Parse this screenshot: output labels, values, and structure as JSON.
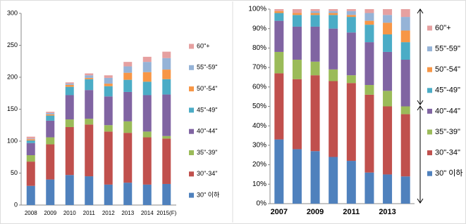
{
  "chart_data": [
    {
      "type": "bar",
      "stacked": true,
      "grid": false,
      "categories": [
        "2008",
        "2009",
        "2010",
        "2011",
        "2012",
        "2013",
        "2014",
        "2015(F)"
      ],
      "ylim": [
        0,
        300
      ],
      "yticks": [
        0,
        50,
        100,
        150,
        200,
        250,
        300
      ],
      "series": [
        {
          "name": "30\" 이하",
          "color": "#4f81bd",
          "values": [
            30,
            40,
            47,
            45,
            32,
            35,
            32,
            33
          ]
        },
        {
          "name": "30\"-34\"",
          "color": "#c0504d",
          "values": [
            38,
            55,
            75,
            81,
            83,
            78,
            74,
            71
          ]
        },
        {
          "name": "35\"-39\"",
          "color": "#9bbb59",
          "values": [
            10,
            11,
            12,
            9,
            10,
            18,
            9,
            4
          ]
        },
        {
          "name": "40\"-44\"",
          "color": "#8064a2",
          "values": [
            19,
            26,
            38,
            45,
            45,
            46,
            57,
            65
          ]
        },
        {
          "name": "45\"-49\"",
          "color": "#4bacc6",
          "values": [
            4,
            8,
            13,
            17,
            16,
            19,
            21,
            24
          ]
        },
        {
          "name": "50\"-54\"",
          "color": "#f79646",
          "values": [
            2,
            2,
            3,
            2,
            4,
            11,
            15,
            15
          ]
        },
        {
          "name": "55\"-59\"",
          "color": "#95b3d7",
          "values": [
            1,
            2,
            2,
            4,
            9,
            10,
            16,
            18
          ]
        },
        {
          "name": "60\"+",
          "color": "#e6a0a0",
          "values": [
            3,
            2,
            2,
            3,
            4,
            7,
            8,
            10
          ]
        }
      ]
    },
    {
      "type": "bar",
      "stacked": true,
      "grid": false,
      "categories": [
        "2007",
        null,
        "2009",
        null,
        "2011",
        null,
        "2013",
        null
      ],
      "ylim": [
        0,
        100
      ],
      "yticks": [
        {
          "value": 0,
          "label": "0%"
        },
        {
          "value": 10,
          "label": "10%"
        },
        {
          "value": 20,
          "label": "20%"
        },
        {
          "value": 30,
          "label": "30%"
        },
        {
          "value": 40,
          "label": "40%"
        },
        {
          "value": 50,
          "label": "50%"
        },
        {
          "value": 60,
          "label": "60%"
        },
        {
          "value": 70,
          "label": "70%"
        },
        {
          "value": 80,
          "label": "80%"
        },
        {
          "value": 90,
          "label": "90%"
        },
        {
          "value": 100,
          "label": "100%"
        }
      ],
      "series": [
        {
          "name": "30\" 이하",
          "color": "#4f81bd",
          "values": [
            33,
            28,
            27,
            24,
            22,
            16,
            15,
            14
          ]
        },
        {
          "name": "30\"-34\"",
          "color": "#c0504d",
          "values": [
            34,
            36,
            39,
            39,
            40,
            40,
            35,
            32
          ]
        },
        {
          "name": "35\"-39\"",
          "color": "#9bbb59",
          "values": [
            11,
            10,
            7,
            6,
            4,
            5,
            8,
            4
          ]
        },
        {
          "name": "40\"-44\"",
          "color": "#8064a2",
          "values": [
            16,
            17,
            18,
            21,
            22,
            22,
            20,
            24
          ]
        },
        {
          "name": "45\"-49\"",
          "color": "#4bacc6",
          "values": [
            4,
            6,
            6,
            7,
            8,
            9,
            9,
            9
          ]
        },
        {
          "name": "50\"-54\"",
          "color": "#f79646",
          "values": [
            1,
            1,
            1,
            1,
            1,
            2,
            6,
            6
          ]
        },
        {
          "name": "55\"-59\"",
          "color": "#95b3d7",
          "values": [
            0,
            0,
            1,
            1,
            2,
            4,
            4,
            7
          ]
        },
        {
          "name": "60\"+",
          "color": "#e6a0a0",
          "values": [
            1,
            2,
            1,
            1,
            1,
            2,
            3,
            4
          ]
        }
      ]
    }
  ]
}
